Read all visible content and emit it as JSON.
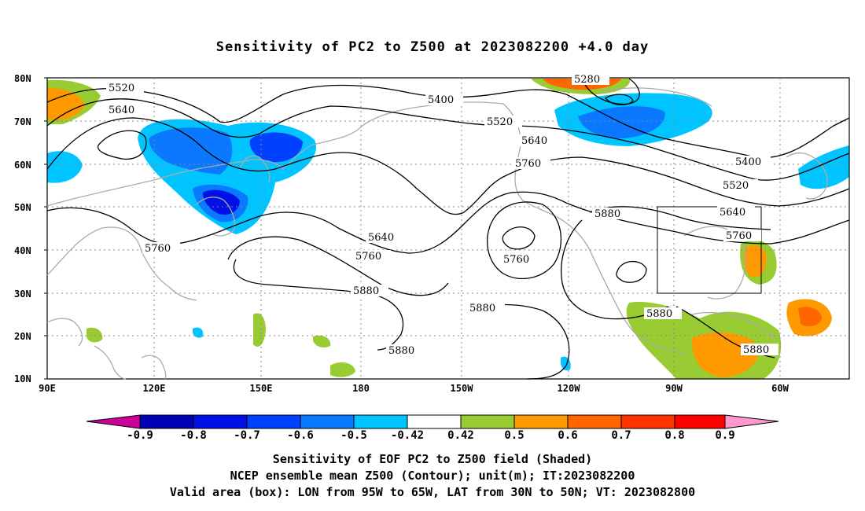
{
  "title": "Sensitivity of PC2 to Z500 at 2023082200 +4.0 day",
  "axes": {
    "lat_ticks": [
      "80N",
      "70N",
      "60N",
      "50N",
      "40N",
      "30N",
      "20N",
      "10N"
    ],
    "lon_ticks": [
      "90E",
      "120E",
      "150E",
      "180",
      "150W",
      "120W",
      "90W",
      "60W"
    ]
  },
  "contour_labels": [
    "5280",
    "5400",
    "5400",
    "5520",
    "5520",
    "5520",
    "5640",
    "5640",
    "5640",
    "5640",
    "5760",
    "5760",
    "5760",
    "5760",
    "5760",
    "5880",
    "5880",
    "5880",
    "5880",
    "5880",
    "5880"
  ],
  "colorbar": {
    "labels": [
      "-0.9",
      "-0.8",
      "-0.7",
      "-0.6",
      "-0.5",
      "-0.42",
      "0.42",
      "0.5",
      "0.6",
      "0.7",
      "0.8",
      "0.9"
    ],
    "colors": [
      "#cc0099",
      "#0000b4",
      "#0010e6",
      "#0040ff",
      "#0a78ff",
      "#00c4ff",
      "#ffffff",
      "#99cc33",
      "#ff9900",
      "#ff6600",
      "#ff3300",
      "#ff0000",
      "#ff99cc"
    ]
  },
  "valid_box": {
    "lon_from": "95W",
    "lon_to": "65W",
    "lat_from": "30N",
    "lat_to": "50N"
  },
  "caption": {
    "line1": "Sensitivity of EOF PC2 to Z500 field (Shaded)",
    "line2": "NCEP ensemble mean Z500 (Contour); unit(m); IT:2023082200",
    "line3": "Valid area (box): LON from 95W to 65W, LAT from 30N to 50N; VT: 2023082800"
  }
}
